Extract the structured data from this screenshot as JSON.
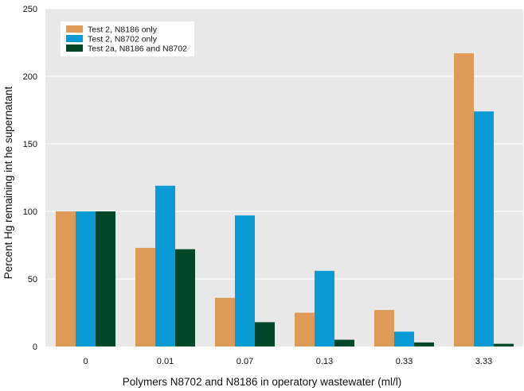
{
  "chart_data": {
    "type": "bar",
    "title": "",
    "xlabel": "Polymers N8702 and N8186 in operatory wastewater",
    "xlabel_unit": "(ml/l)",
    "ylabel": "Percent Hg remaining int he supernatant",
    "ylim": [
      0,
      250
    ],
    "yticks": [
      "0",
      "50",
      "100",
      "150",
      "200",
      "250"
    ],
    "categories": [
      "0",
      "0.01",
      "0.07",
      "0.13",
      "0.33",
      "3.33"
    ],
    "series": [
      {
        "name": "Test 2, N8186 only",
        "color": "#de9b58",
        "values": [
          100,
          73,
          36,
          25,
          27,
          217
        ]
      },
      {
        "name": "Test 2, N8702 only",
        "color": "#0a9ad6",
        "values": [
          100,
          119,
          97,
          56,
          11,
          174
        ]
      },
      {
        "name": "Test 2a, N8186 and N8702",
        "color": "#034729",
        "values": [
          100,
          72,
          18,
          5,
          3,
          2
        ]
      }
    ],
    "grid": "horizontal",
    "legend_position": "top-left",
    "plot_background": "#e8e8e8",
    "gridline_color": "#ffffff"
  }
}
